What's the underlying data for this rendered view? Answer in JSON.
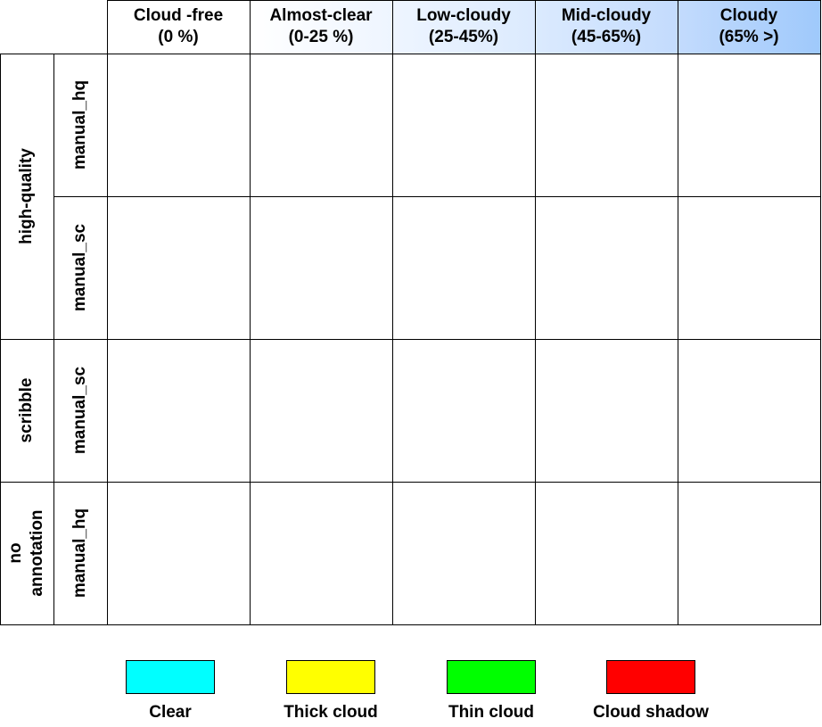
{
  "columns": [
    {
      "line1": "Cloud -free",
      "line2": "(0 %)",
      "bg": "#ffffff"
    },
    {
      "line1": "Almost-clear",
      "line2": "(0-25 %)",
      "bg": "#eef5ff"
    },
    {
      "line1": "Low-cloudy",
      "line2": "(25-45%)",
      "bg": "#dbeafe"
    },
    {
      "line1": "Mid-cloudy",
      "line2": "(45-65%)",
      "bg": "#c3dbfd"
    },
    {
      "line1": "Cloudy",
      "line2": "(65% >)",
      "bg": "#9fc9fb"
    }
  ],
  "groups": [
    {
      "line1": "high-quality",
      "line2": ""
    },
    {
      "line1": "scribble",
      "line2": ""
    },
    {
      "line1": "no",
      "line2": "annotation"
    }
  ],
  "rows": [
    {
      "label": "manual_hq"
    },
    {
      "label": "manual_sc"
    },
    {
      "label": "manual_sc"
    },
    {
      "label": "manual_hq"
    }
  ],
  "legend": [
    {
      "label": "Clear",
      "color": "#00ffff"
    },
    {
      "label": "Thick cloud",
      "color": "#ffff00"
    },
    {
      "label": "Thin cloud",
      "color": "#00ff00"
    },
    {
      "label": "Cloud shadow",
      "color": "#ff0000"
    }
  ]
}
